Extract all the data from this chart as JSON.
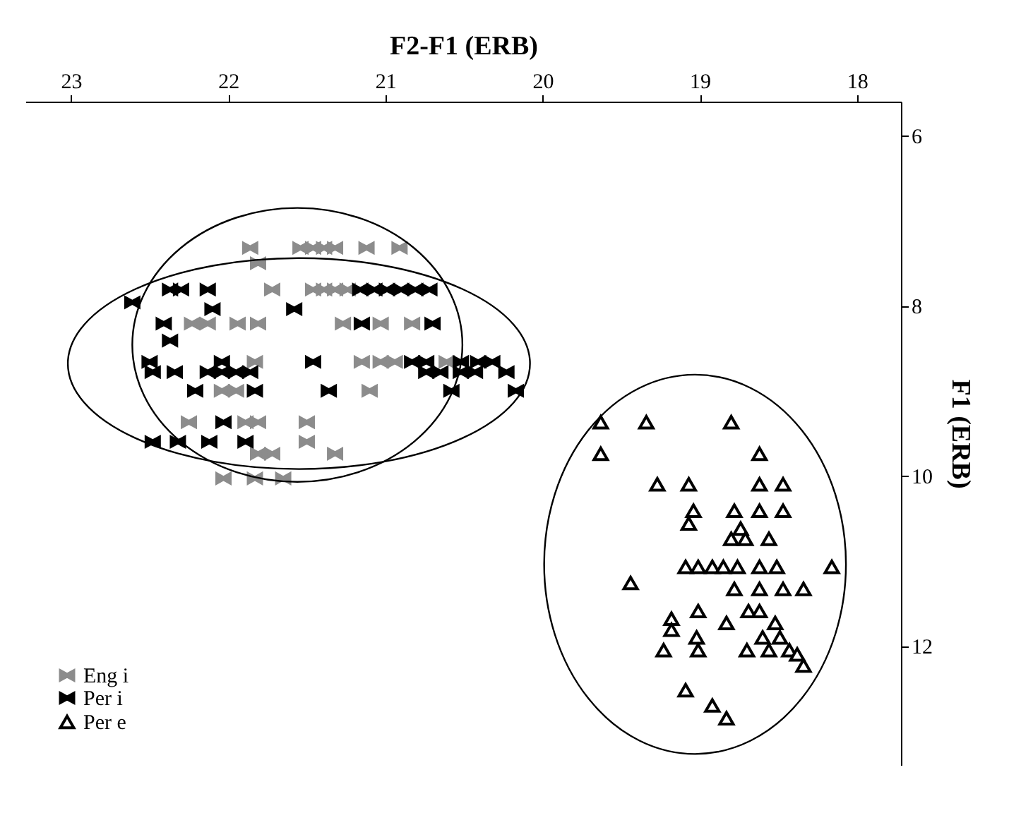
{
  "chart_data": {
    "type": "scatter",
    "xlabel": "F2-F1 (ERB)",
    "ylabel": "F1 (ERB)",
    "xlim": [
      23.29,
      17.72
    ],
    "xticks": [
      23,
      22,
      21,
      20,
      19,
      18
    ],
    "ylim": [
      13.4,
      5.6
    ],
    "yticks": [
      6,
      8,
      10,
      12
    ],
    "grid": false,
    "legend": "bottom left",
    "series": [
      {
        "name": "Eng i",
        "color": "#8c8c8c",
        "x": [
          21.86,
          21.81,
          21.54,
          21.46,
          21.39,
          21.32,
          21.12,
          20.91,
          21.72,
          21.46,
          21.39,
          21.32,
          21.24,
          22.23,
          22.13,
          21.94,
          21.81,
          21.27,
          21.03,
          20.83,
          21.83,
          21.15,
          21.03,
          20.94,
          20.61,
          22.04,
          21.95,
          21.1,
          22.25,
          21.89,
          21.81,
          21.5,
          21.5,
          21.81,
          21.72,
          21.32,
          22.03,
          21.83,
          21.65
        ],
        "values": [
          7.32,
          7.5,
          7.32,
          7.32,
          7.32,
          7.32,
          7.32,
          7.32,
          7.81,
          7.81,
          7.81,
          7.81,
          7.81,
          8.21,
          8.21,
          8.21,
          8.21,
          8.21,
          8.21,
          8.21,
          8.66,
          8.66,
          8.66,
          8.66,
          8.66,
          9.0,
          9.0,
          9.0,
          9.37,
          9.37,
          9.37,
          9.37,
          9.6,
          9.74,
          9.74,
          9.74,
          10.03,
          10.03,
          10.03
        ]
      },
      {
        "name": "Per i",
        "color": "#000000",
        "x": [
          22.37,
          22.3,
          22.13,
          21.16,
          21.07,
          20.99,
          20.9,
          20.81,
          20.72,
          22.61,
          22.1,
          21.58,
          22.41,
          21.15,
          20.7,
          22.37,
          22.5,
          22.04,
          21.46,
          20.83,
          20.74,
          20.52,
          20.41,
          20.32,
          22.48,
          22.34,
          22.13,
          22.04,
          21.95,
          21.86,
          20.74,
          20.65,
          20.52,
          20.43,
          20.23,
          22.21,
          21.83,
          21.36,
          20.58,
          20.17,
          22.03,
          22.48,
          22.32,
          22.12,
          21.89
        ],
        "values": [
          7.81,
          7.81,
          7.81,
          7.81,
          7.81,
          7.81,
          7.81,
          7.81,
          7.81,
          7.96,
          8.04,
          8.04,
          8.21,
          8.21,
          8.21,
          8.41,
          8.66,
          8.66,
          8.66,
          8.66,
          8.66,
          8.66,
          8.66,
          8.66,
          8.78,
          8.78,
          8.78,
          8.78,
          8.78,
          8.78,
          8.78,
          8.78,
          8.78,
          8.78,
          8.78,
          9.0,
          9.0,
          9.0,
          9.0,
          9.0,
          9.37,
          9.6,
          9.6,
          9.6,
          9.6
        ]
      },
      {
        "name": "Per e",
        "color": "#000000",
        "marker": "triangle",
        "x": [
          19.63,
          19.34,
          18.8,
          19.63,
          18.62,
          19.27,
          19.07,
          18.62,
          18.47,
          19.04,
          18.78,
          18.62,
          18.47,
          19.07,
          18.74,
          18.8,
          18.71,
          18.56,
          19.09,
          19.01,
          18.92,
          18.85,
          18.76,
          18.62,
          18.51,
          18.16,
          19.44,
          18.78,
          18.62,
          18.47,
          18.34,
          19.01,
          18.69,
          18.62,
          19.18,
          18.83,
          18.52,
          19.18,
          19.02,
          18.6,
          18.49,
          19.23,
          19.01,
          18.7,
          18.56,
          18.43,
          18.38,
          18.34,
          19.09,
          18.92,
          18.83
        ],
        "values": [
          9.37,
          9.37,
          9.37,
          9.74,
          9.74,
          10.1,
          10.1,
          10.1,
          10.1,
          10.41,
          10.41,
          10.41,
          10.41,
          10.56,
          10.62,
          10.74,
          10.74,
          10.74,
          11.07,
          11.07,
          11.07,
          11.07,
          11.07,
          11.07,
          11.07,
          11.07,
          11.26,
          11.33,
          11.33,
          11.33,
          11.33,
          11.59,
          11.59,
          11.59,
          11.68,
          11.73,
          11.73,
          11.81,
          11.9,
          11.9,
          11.9,
          12.05,
          12.05,
          12.05,
          12.05,
          12.05,
          12.1,
          12.23,
          12.52,
          12.7,
          12.85
        ]
      }
    ]
  }
}
